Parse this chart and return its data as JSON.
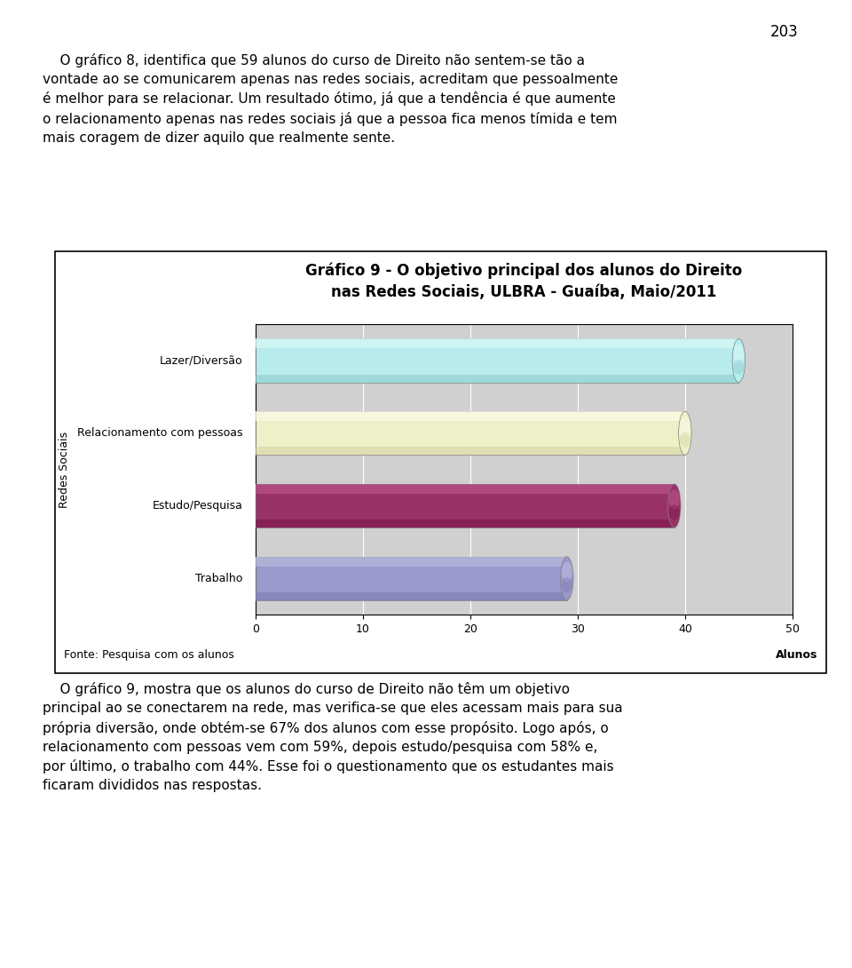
{
  "title_line1": "Gráfico 9 - O objetivo principal dos alunos do Direito",
  "title_line2": "nas Redes Sociais, ULBRA - Guaíba, Maio/2011",
  "categories": [
    "Lazer/Diversão",
    "Relacionamento com pessoas",
    "Estudo/Pesquisa",
    "Trabalho"
  ],
  "values": [
    45,
    40,
    39,
    29
  ],
  "bar_colors": [
    "#b8ecec",
    "#f0f0c8",
    "#993366",
    "#9999cc"
  ],
  "bar_top_colors": [
    "#d8f8f8",
    "#fafae8",
    "#bb5588",
    "#bbbbdd"
  ],
  "bar_bottom_colors": [
    "#88c8c8",
    "#d0d0a0",
    "#771144",
    "#7777aa"
  ],
  "ylabel": "Redes Sociais",
  "xlabel": "Alunos",
  "source_label": "Fonte: Pesquisa com os alunos",
  "xlim": [
    0,
    50
  ],
  "xticks": [
    0,
    10,
    20,
    30,
    40,
    50
  ],
  "plot_bg_color": "#d0d0d0",
  "title_fontsize": 12,
  "label_fontsize": 9,
  "tick_fontsize": 9,
  "page_number": "203",
  "top_text_line1": "    O gráfico 8, identifica que 59 alunos do curso de Direito não sentem-se tão a",
  "top_text_line2": "vontade ao se comunicarem apenas nas redes sociais, acreditam que pessoalmente",
  "top_text_line3": "é melhor para se relacionar. Um resultado ótimo, já que a tendência é que aumente",
  "top_text_line4": "o relacionamento apenas nas redes sociais já que a pessoa fica menos tímida e tem",
  "top_text_line5": "mais coragem de dizer aquilo que realmente sente.",
  "bottom_text_line1": "    O gráfico 9, mostra que os alunos do curso de Direito não têm um objetivo",
  "bottom_text_line2": "principal ao se conectarem na rede, mas verifica-se que eles acessam mais para sua",
  "bottom_text_line3": "própria diversão, onde obtém-se 67% dos alunos com esse propósito. Logo após, o",
  "bottom_text_line4": "relacionamento com pessoas vem com 59%, depois estudo/pesquisa com 58% e,",
  "bottom_text_line5": "por último, o trabalho com 44%. Esse foi o questionamento que os estudantes mais",
  "bottom_text_line6": "ficaram divididos nas respostas."
}
